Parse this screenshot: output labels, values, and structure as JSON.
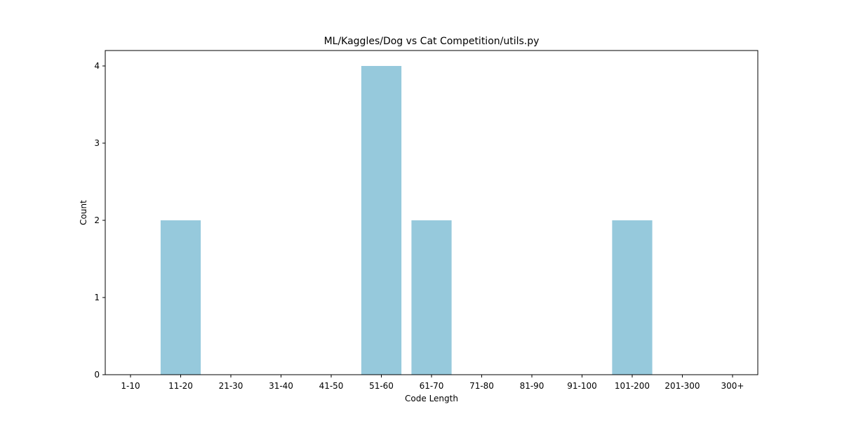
{
  "chart_data": {
    "type": "bar",
    "title": "ML/Kaggles/Dog vs Cat Competition/utils.py",
    "xlabel": "Code Length",
    "ylabel": "Count",
    "categories": [
      "1-10",
      "11-20",
      "21-30",
      "31-40",
      "41-50",
      "51-60",
      "61-70",
      "71-80",
      "81-90",
      "91-100",
      "101-200",
      "201-300",
      "300+"
    ],
    "values": [
      0,
      2,
      0,
      0,
      0,
      4,
      2,
      0,
      0,
      0,
      2,
      0,
      0
    ],
    "yticks": [
      0,
      1,
      2,
      3,
      4
    ],
    "ylim": [
      0,
      4.2
    ],
    "bar_color": "#96c9dc",
    "grid": false,
    "legend": "none"
  }
}
